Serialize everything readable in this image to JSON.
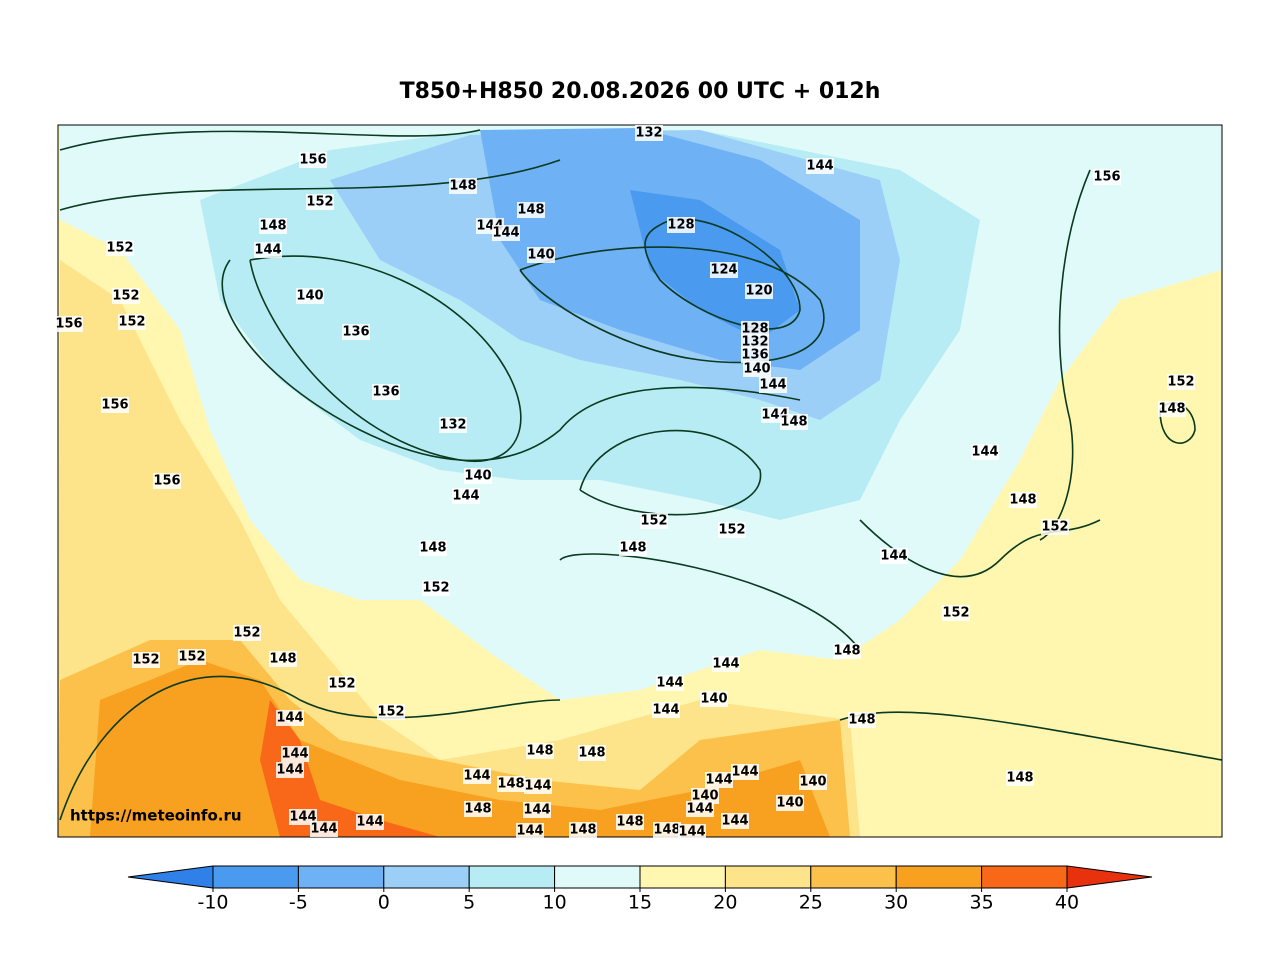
{
  "title": "T850+H850 20.08.2026 00 UTC + 012h",
  "watermark": "https://meteoinfo.ru",
  "contour_labels": [
    132,
    144,
    156,
    148,
    152,
    148,
    144,
    144,
    156,
    128,
    148,
    152,
    144,
    140,
    124,
    120,
    152,
    140,
    152,
    156,
    136,
    128,
    132,
    136,
    140,
    144,
    152,
    136,
    156,
    148,
    144,
    148,
    132,
    144,
    140,
    156,
    144,
    148,
    152,
    152,
    152,
    148,
    148,
    144,
    152,
    152,
    152,
    148,
    152,
    152,
    148,
    144,
    144,
    152,
    140,
    144,
    152,
    144,
    148,
    148,
    144,
    148,
    144,
    144,
    144,
    144,
    148,
    144,
    140,
    148,
    140,
    144,
    140,
    148,
    144,
    144,
    144,
    144,
    144,
    148,
    144,
    148,
    148,
    144
  ],
  "colorbar": {
    "ticks": [
      -10,
      -5,
      0,
      5,
      10,
      15,
      20,
      25,
      30,
      35,
      40
    ],
    "colors": [
      "#2f80e8",
      "#4a9af0",
      "#6fb1f5",
      "#9ccff8",
      "#b8ecf5",
      "#e0fafa",
      "#fff6b0",
      "#fde38a",
      "#fbc14a",
      "#f8a020",
      "#f86818",
      "#e8320e"
    ]
  }
}
